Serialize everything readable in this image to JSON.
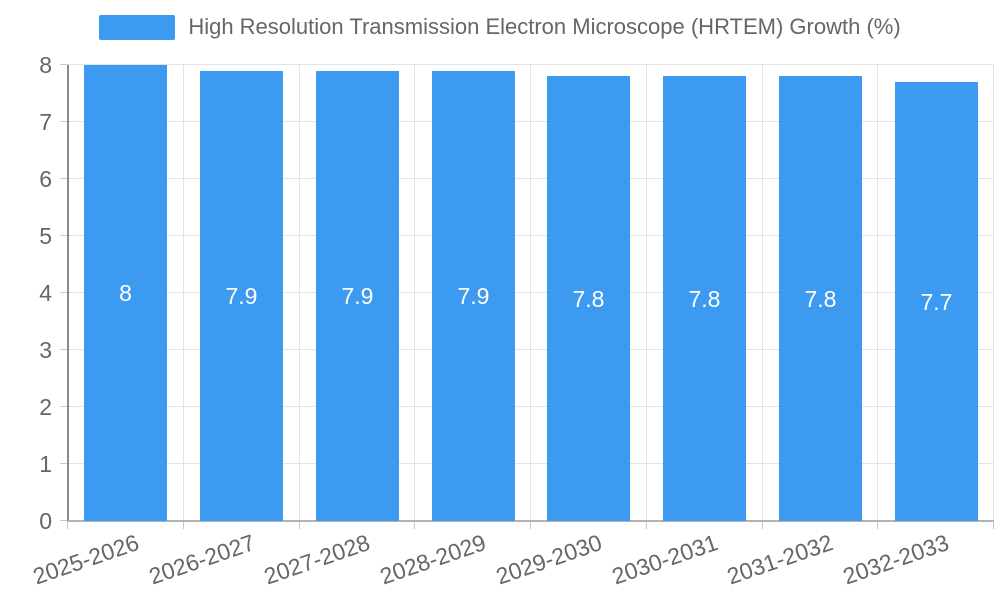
{
  "legend": {
    "label": "High Resolution Transmission Electron Microscope (HRTEM) Growth (%)"
  },
  "chart_data": {
    "type": "bar",
    "title": "",
    "xlabel": "",
    "ylabel": "",
    "categories": [
      "2025-2026",
      "2026-2027",
      "2027-2028",
      "2028-2029",
      "2029-2030",
      "2030-2031",
      "2031-2032",
      "2032-2033"
    ],
    "series": [
      {
        "name": "High Resolution Transmission Electron Microscope (HRTEM) Growth (%)",
        "values": [
          8,
          7.9,
          7.9,
          7.9,
          7.8,
          7.8,
          7.8,
          7.7
        ]
      }
    ],
    "values": [
      8,
      7.9,
      7.9,
      7.9,
      7.8,
      7.8,
      7.8,
      7.7
    ],
    "bar_labels": [
      "8",
      "7.9",
      "7.9",
      "7.9",
      "7.8",
      "7.8",
      "7.8",
      "7.7"
    ],
    "ylim": [
      0,
      8
    ],
    "yticks": [
      0,
      1,
      2,
      3,
      4,
      5,
      6,
      7,
      8
    ],
    "grid": true,
    "legend_position": "top",
    "x_label_rotation_deg": -19,
    "colors": {
      "bar": "#3C9AF0",
      "bar_label": "#FFFFFF",
      "grid": "#E3E3E3",
      "tick": "#C8C8C8",
      "axis_y": "#8A8A8A",
      "axis_x": "#B2B2B2",
      "text": "#666666",
      "background": "#FFFFFF"
    }
  }
}
